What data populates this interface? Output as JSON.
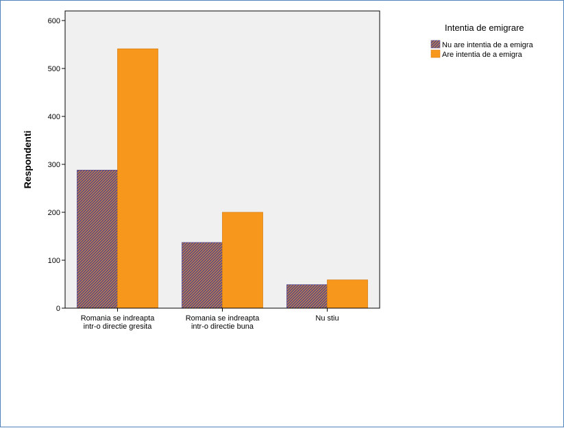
{
  "chart_data": {
    "type": "bar",
    "title": "",
    "xlabel": "",
    "ylabel": "Respondenti",
    "ylim": [
      0,
      620
    ],
    "yticks": [
      0,
      100,
      200,
      300,
      400,
      500,
      600
    ],
    "grid": false,
    "legend_position": "top-right",
    "legend_title": "Intentia de emigrare",
    "categories": [
      [
        "Romania se indreapta",
        "intr-o directie gresita"
      ],
      [
        "Romania se indreapta",
        "intr-o directie buna"
      ],
      [
        "Nu stiu"
      ]
    ],
    "series": [
      {
        "name": "Nu are intentia de a emigra",
        "values": [
          288,
          137,
          49
        ],
        "color": "#5a4b8c",
        "pattern": "hatched"
      },
      {
        "name": "Are intentia de a emigra",
        "values": [
          541,
          200,
          59
        ],
        "color": "#f7981d",
        "pattern": "solid"
      }
    ],
    "plot_background": "#f0f0f0"
  }
}
